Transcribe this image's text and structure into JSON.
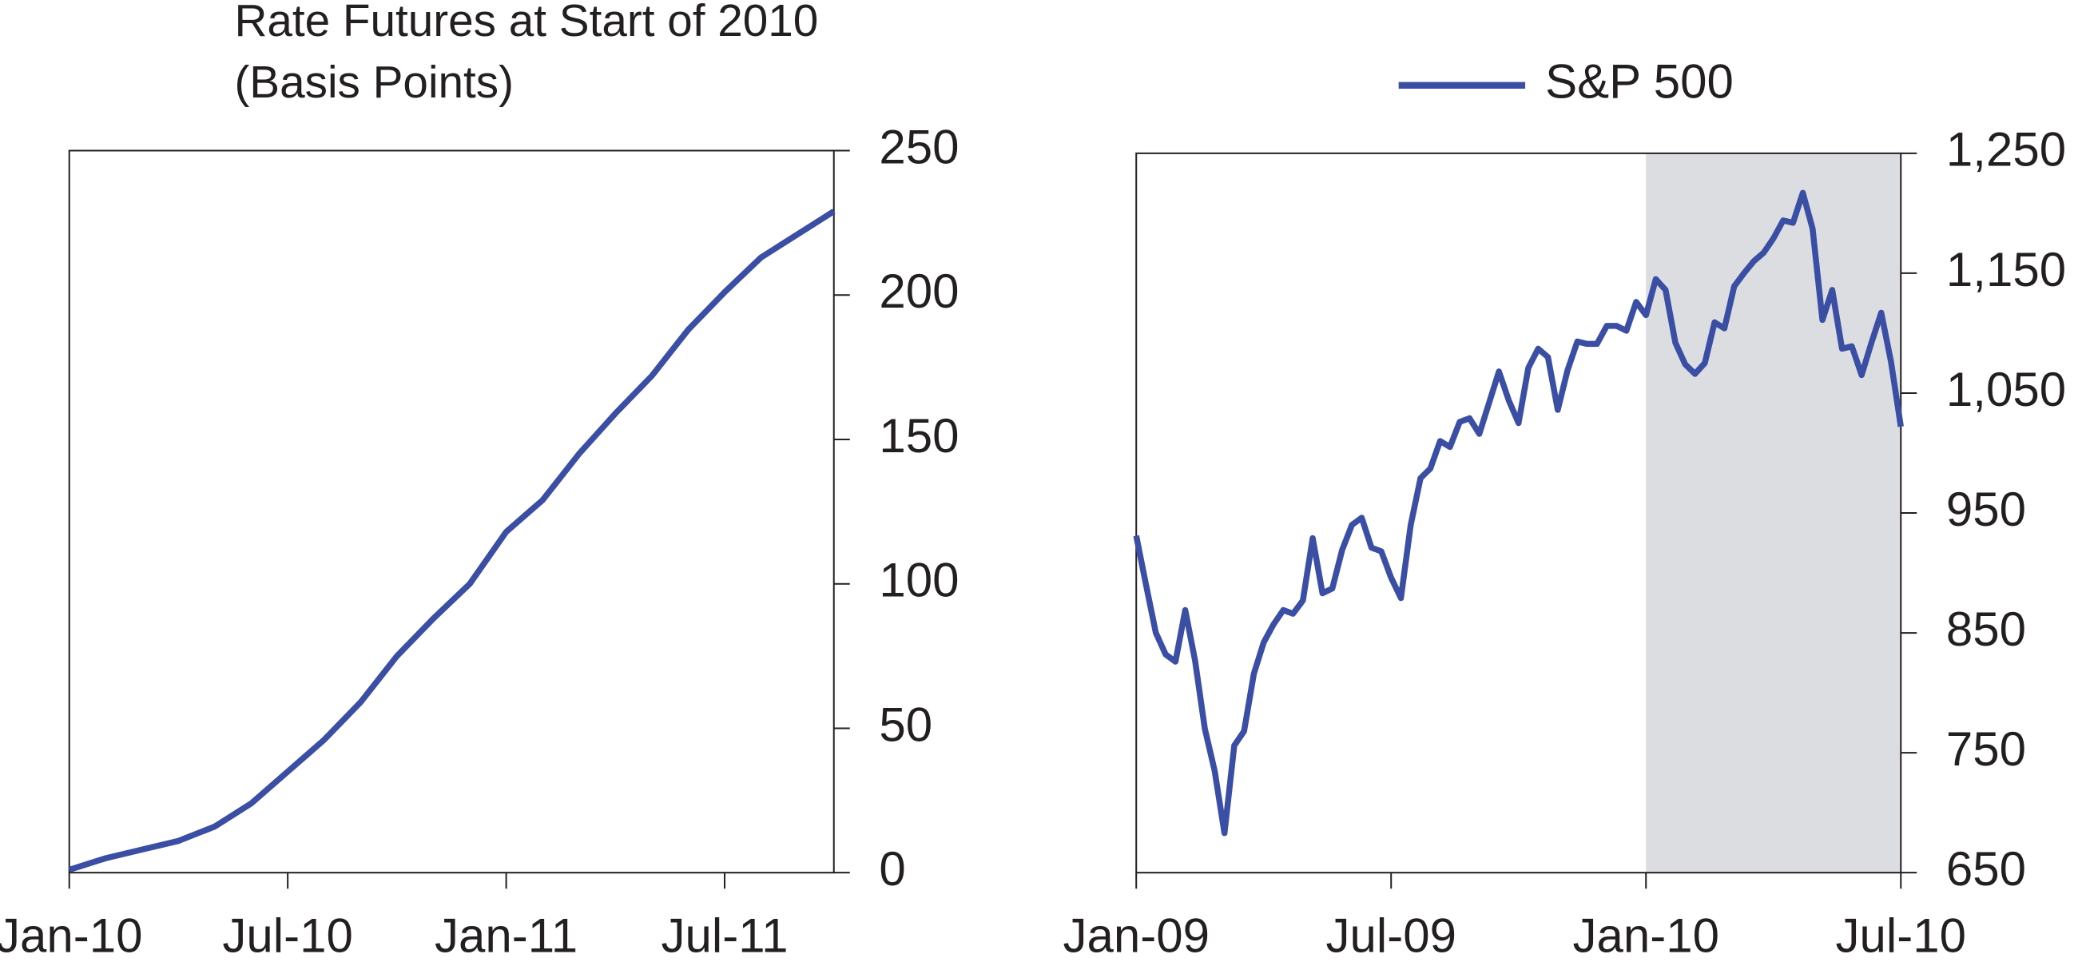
{
  "chart_data": [
    {
      "type": "line",
      "title": "Rate Futures at Start of 2010",
      "subtitle": "(Basis Points)",
      "categories": [
        "Jan-10",
        null,
        null,
        null,
        null,
        null,
        "Jul-10",
        null,
        null,
        null,
        null,
        null,
        "Jan-11",
        null,
        null,
        null,
        null,
        null,
        "Jul-11",
        null,
        null,
        null
      ],
      "values": [
        1,
        5,
        8,
        11,
        16,
        24,
        35,
        46,
        59,
        75,
        88,
        100,
        118,
        129,
        145,
        159,
        172,
        188,
        201,
        213,
        221,
        229
      ],
      "color": "#3a4ea3",
      "ylim": [
        0,
        250
      ],
      "yticks": [
        0,
        50,
        100,
        150,
        200,
        250
      ],
      "y_axis_side": "right",
      "grid": false
    },
    {
      "type": "line",
      "categories": [
        "Jan-09",
        null,
        null,
        null,
        null,
        null,
        null,
        null,
        null,
        null,
        null,
        null,
        null,
        null,
        null,
        null,
        null,
        null,
        null,
        null,
        null,
        null,
        null,
        null,
        null,
        null,
        "Jul-09",
        null,
        null,
        null,
        null,
        null,
        null,
        null,
        null,
        null,
        null,
        null,
        null,
        null,
        null,
        null,
        null,
        null,
        null,
        null,
        null,
        null,
        null,
        null,
        null,
        null,
        "Jan-10",
        null,
        null,
        null,
        null,
        null,
        null,
        null,
        null,
        null,
        null,
        null,
        null,
        null,
        null,
        null,
        null,
        null,
        null,
        null,
        null,
        null,
        null,
        null,
        null,
        null,
        "Jul-10"
      ],
      "series": [
        {
          "name": "S&P 500",
          "color": "#3a4ea3",
          "values": [
            931,
            890,
            850,
            832,
            826,
            869,
            827,
            770,
            735,
            683,
            756,
            768,
            816,
            842,
            857,
            869,
            866,
            877,
            929,
            883,
            887,
            919,
            940,
            946,
            921,
            918,
            896,
            879,
            940,
            979,
            987,
            1010,
            1005,
            1026,
            1029,
            1016,
            1042,
            1068,
            1044,
            1025,
            1071,
            1087,
            1080,
            1036,
            1069,
            1093,
            1091,
            1091,
            1106,
            1106,
            1102,
            1126,
            1115,
            1145,
            1136,
            1092,
            1074,
            1066,
            1075,
            1109,
            1104,
            1139,
            1150,
            1160,
            1167,
            1179,
            1194,
            1192,
            1217,
            1187,
            1111,
            1136,
            1087,
            1089,
            1065,
            1092,
            1117,
            1076,
            1022
          ]
        }
      ],
      "ylim": [
        650,
        1250
      ],
      "yticks": [
        650,
        750,
        850,
        950,
        {
          "value": 1050,
          "label": "1,050"
        },
        {
          "value": 1150,
          "label": "1,150"
        },
        {
          "value": 1250,
          "label": "1,250"
        }
      ],
      "y_axis_side": "right",
      "legend": "top",
      "grid": false,
      "shade_from": "Jan-10",
      "shade_to": "Jul-10",
      "shade_color": "#dcdde0"
    }
  ]
}
